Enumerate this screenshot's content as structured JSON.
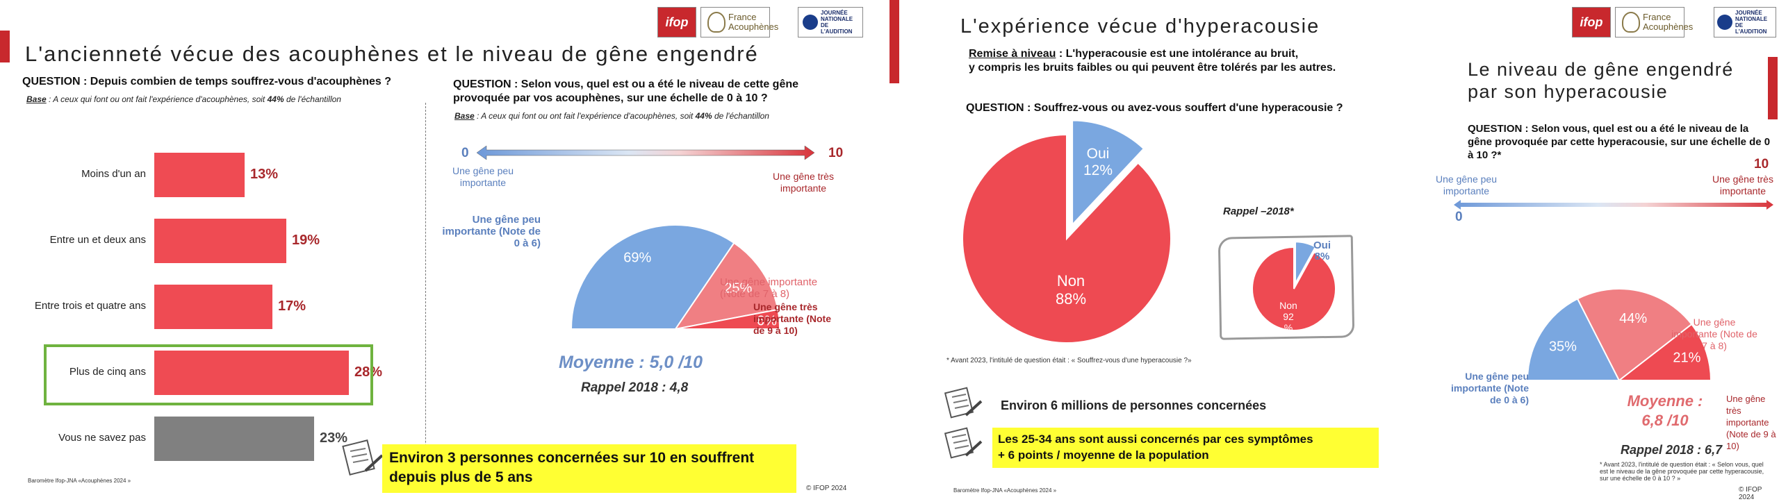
{
  "colors": {
    "accent_red": "#c8282d",
    "bar_red": "#ef4b53",
    "bar_grey": "#808080",
    "pie_blue": "#7aa7e0",
    "pie_pink": "#f07f83",
    "pie_red": "#ee4a52",
    "value_red": "#a8272b",
    "highlight_green": "#6fb33f",
    "callout_yellow": "#ffff33"
  },
  "logos": {
    "ifop": "ifop",
    "france_acouphenes": "France Acouphènes",
    "jna": "JOURNÉE NATIONALE DE L'AUDITION"
  },
  "slide1": {
    "title": "L'ancienneté vécue des acouphènes et le niveau de gêne engendré",
    "left": {
      "question": "QUESTION : Depuis combien de temps souffrez-vous d'acouphènes ?",
      "base_label": "Base",
      "base_text": " : A ceux qui font ou ont fait l'expérience d'acouphènes, soit ",
      "base_pct": "44%",
      "base_end": " de l'échantillon",
      "value_labels": [
        "13%",
        "19%",
        "17%",
        "28%",
        "23%"
      ],
      "footnote": "Baromètre Ifop-JNA «Acouphènes 2024 »"
    },
    "right": {
      "question_line1": "QUESTION : Selon vous, quel est ou a été le niveau de cette gêne",
      "question_line2": "provoquée par vos acouphènes, sur une échelle de 0 à 10 ?",
      "base_label": "Base",
      "base_text": " : A ceux qui font ou ont fait l'expérience d'acouphènes, soit ",
      "base_pct": "44%",
      "base_end": " de l'échantillon",
      "scale_min": "0",
      "scale_max": "10",
      "scale_min_label": "Une gêne peu importante",
      "scale_max_label": "Une gêne très importante",
      "pie_labels": {
        "low": "Une gêne peu importante (Note de 0 à 6)",
        "mid": "Une gêne importante (Note de 7 à 8)",
        "high": "Une gêne très importante (Note de 9 à 10)"
      },
      "pie_values": [
        "69%",
        "25%",
        "6%"
      ],
      "moyenne": "Moyenne : 5,0 /10",
      "rappel": "Rappel 2018 : 4,8"
    },
    "callout": "Environ 3 personnes concernées sur 10 en souffrent depuis plus de 5 ans",
    "copyright": "© IFOP 2024"
  },
  "slide2": {
    "title": "L'expérience vécue d'hyperacousie",
    "remise_label": "Remise à niveau",
    "remise_line1": " : L'hyperacousie est une intolérance au bruit,",
    "remise_line2": "y compris les bruits faibles ou qui peuvent être tolérés par les autres.",
    "question": "QUESTION : Souffrez-vous ou avez-vous souffert d'une hyperacousie ?",
    "pie_main": {
      "oui_label": "Oui",
      "oui_pct": "12%",
      "non_label": "Non",
      "non_pct": "88%"
    },
    "rappel_title": "Rappel –2018*",
    "pie_2018": {
      "oui_label": "Oui",
      "oui_pct": "8%",
      "non_label": "Non",
      "non_pct_a": "92",
      "non_pct_b": "%"
    },
    "footnote": "* Avant 2023, l'intitulé de question était : « Souffrez-vous d'une hyperacousie ?»",
    "stat1": "Environ 6 millions de personnes concernées",
    "stat2_line1": "Les 25-34 ans sont aussi concernés par ces symptômes",
    "stat2_line2": "+ 6 points / moyenne de la population",
    "barometre": "Baromètre Ifop-JNA «Acouphènes 2024 »",
    "right": {
      "title_line1": "Le niveau de gêne engendré",
      "title_line2": "par son hyperacousie",
      "question": "QUESTION : Selon vous, quel est ou a été le niveau de la gêne provoquée par cette hyperacousie, sur une échelle de 0 à 10 ?*",
      "scale_min": "0",
      "scale_max": "10",
      "scale_min_label": "Une gêne peu importante",
      "scale_max_label": "Une gêne très importante",
      "pie_labels": {
        "low": "Une gêne peu importante (Note de 0 à 6)",
        "mid": "Une gêne importante (Note de 7 à 8)",
        "high": "Une gêne très importante (Note de 9 à 10)"
      },
      "pie_values": [
        "35%",
        "44%",
        "21%"
      ],
      "moyenne_line1": "Moyenne :",
      "moyenne_line2": "6,8 /10",
      "rappel": "Rappel 2018 : 6,7",
      "footnote": "* Avant 2023, l'intitulé de question était : « Selon vous, quel est le niveau de la gêne provoquée par cette hyperacousie, sur une échelle de 0 à 10 ? »",
      "copyright": "© IFOP 2024"
    }
  },
  "chart_data": [
    {
      "type": "bar",
      "orientation": "horizontal",
      "title": "",
      "categories": [
        "Moins d'un an",
        "Entre un et deux ans",
        "Entre trois et quatre ans",
        "Plus de cinq ans",
        "Vous ne savez pas"
      ],
      "values": [
        13,
        19,
        17,
        28,
        23
      ],
      "highlighted": "Plus de cinq ans",
      "xlim": [
        0,
        30
      ]
    },
    {
      "type": "pie",
      "half": true,
      "labels": [
        "Une gêne peu importante (Note de 0 à 6)",
        "Une gêne importante (Note de 7 à 8)",
        "Une gêne très importante (Note de 9 à 10)"
      ],
      "values": [
        69,
        25,
        6
      ]
    },
    {
      "type": "pie",
      "labels": [
        "Oui",
        "Non"
      ],
      "values": [
        12,
        88
      ]
    },
    {
      "type": "pie",
      "title": "Rappel –2018*",
      "labels": [
        "Oui",
        "Non"
      ],
      "values": [
        8,
        92
      ]
    },
    {
      "type": "pie",
      "half": true,
      "labels": [
        "Une gêne peu importante (Note de 0 à 6)",
        "Une gêne importante (Note de 7 à 8)",
        "Une gêne très importante (Note de 9 à 10)"
      ],
      "values": [
        35,
        44,
        21
      ]
    }
  ]
}
